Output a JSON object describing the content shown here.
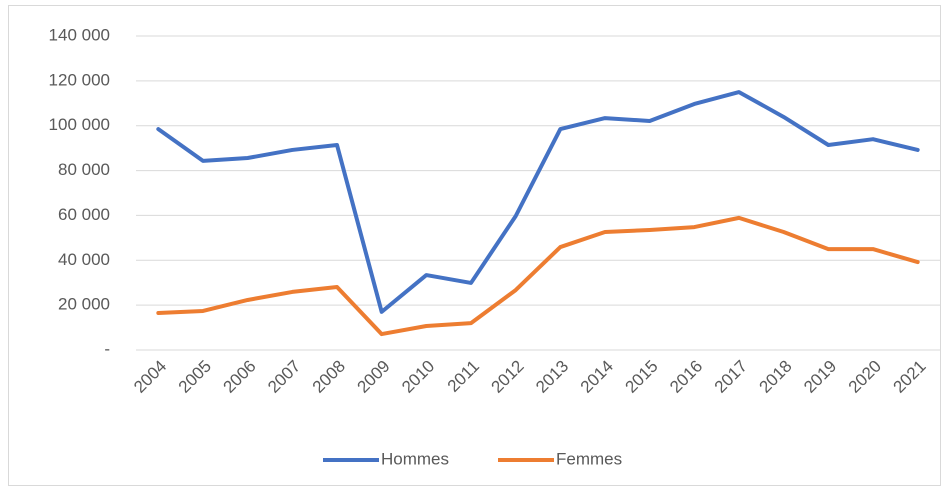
{
  "chart_data": {
    "type": "line",
    "categories": [
      "2004",
      "2005",
      "2006",
      "2007",
      "2008",
      "2009",
      "2010",
      "2011",
      "2012",
      "2013",
      "2014",
      "2015",
      "2016",
      "2017",
      "2018",
      "2019",
      "2020",
      "2021"
    ],
    "series": [
      {
        "name": "Hommes",
        "color": "#4472c4",
        "values": [
          98500,
          84300,
          85600,
          89200,
          91400,
          17000,
          33400,
          29900,
          59700,
          98500,
          103400,
          102100,
          109700,
          115000,
          103900,
          91400,
          94000,
          89200
        ]
      },
      {
        "name": "Femmes",
        "color": "#ed7d31",
        "values": [
          16500,
          17400,
          22300,
          25900,
          28100,
          7100,
          10700,
          12000,
          26700,
          45900,
          52600,
          53500,
          54800,
          58900,
          52600,
          45000,
          45000,
          39200
        ]
      }
    ],
    "ylim": [
      0,
      140000
    ],
    "yticks": [
      {
        "value": 0,
        "label": "-"
      },
      {
        "value": 20000,
        "label": "20 000"
      },
      {
        "value": 40000,
        "label": "40 000"
      },
      {
        "value": 60000,
        "label": "60 000"
      },
      {
        "value": 80000,
        "label": "80 000"
      },
      {
        "value": 100000,
        "label": "100 000"
      },
      {
        "value": 120000,
        "label": "120 000"
      },
      {
        "value": 140000,
        "label": "140 000"
      }
    ],
    "grid": true,
    "legend": "bottom"
  }
}
